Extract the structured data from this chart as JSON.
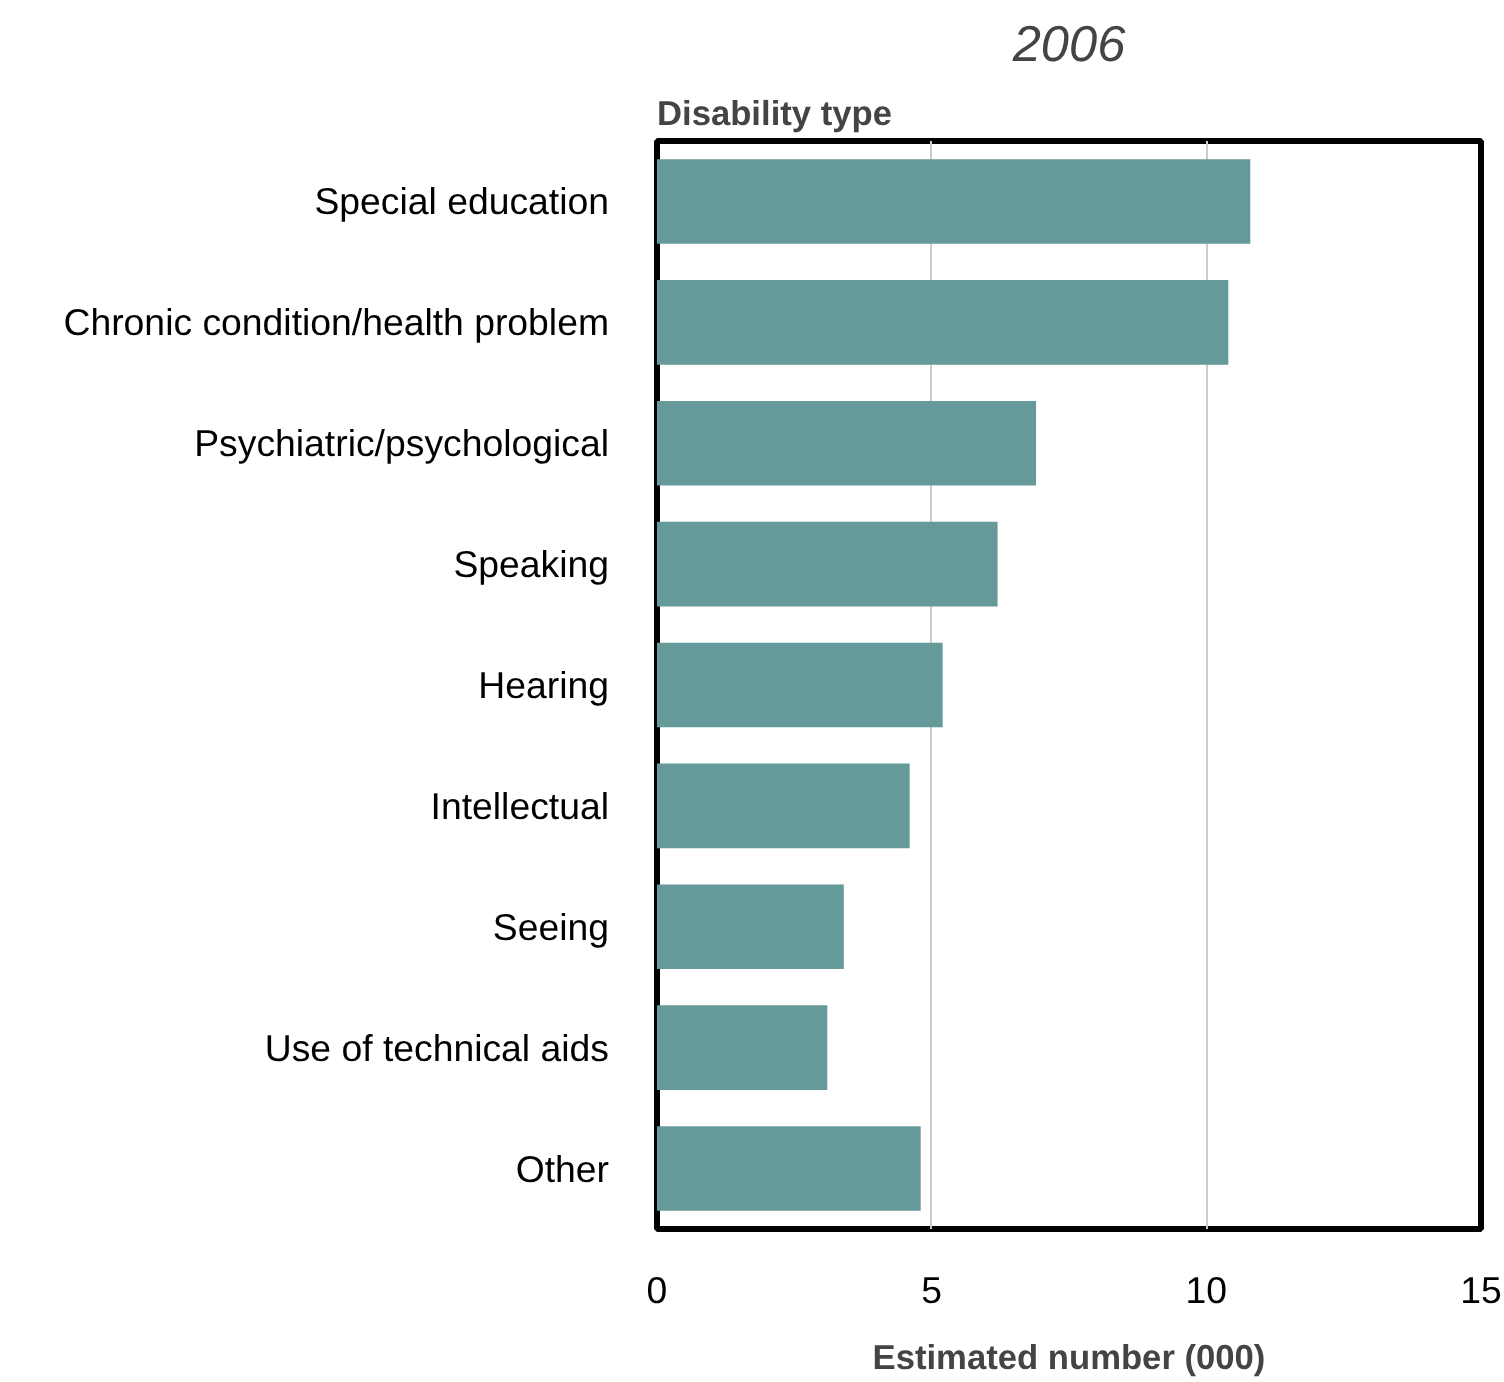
{
  "chart_data": {
    "type": "bar",
    "orientation": "horizontal",
    "title": "2006",
    "ylabel": "Disability type",
    "xlabel": "Estimated number (000)",
    "categories": [
      "Special education",
      "Chronic condition/health problem",
      "Psychiatric/psychological",
      "Speaking",
      "Hearing",
      "Intellectual",
      "Seeing",
      "Use of technical aids",
      "Other"
    ],
    "values": [
      10.8,
      10.4,
      6.9,
      6.2,
      5.2,
      4.6,
      3.4,
      3.1,
      4.8
    ],
    "color": "#669999",
    "xlim": [
      0,
      15
    ],
    "xticks": [
      0,
      5,
      10,
      15
    ],
    "grid": "x"
  }
}
